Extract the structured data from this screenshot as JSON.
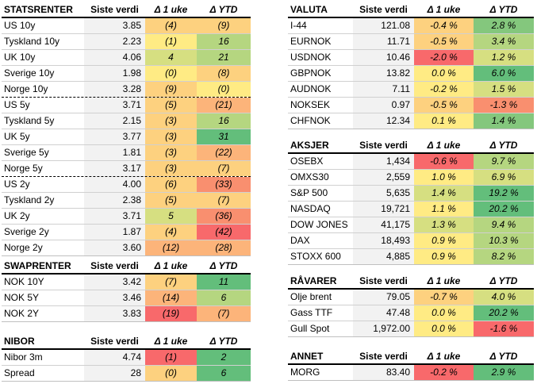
{
  "palette": {
    "deep_green": "#63be7b",
    "green": "#84c77d",
    "light_green": "#b5d680",
    "pale_green": "#d6df81",
    "yellow": "#ffeb84",
    "light_orange": "#fdd17f",
    "orange": "#fcb47a",
    "red_orange": "#f98f6f",
    "red": "#f8696b",
    "gray_bg": "#f2f2f2"
  },
  "tables": [
    {
      "id": "statsrenter",
      "title": "STATSRENTER",
      "col_value": "Siste verdi",
      "col_week": "Δ 1 uke",
      "col_ytd": "Δ YTD",
      "rows": [
        {
          "name": "US 10y",
          "value": "3.85",
          "week": "(4)",
          "week_color": "light_orange",
          "ytd": "(9)",
          "ytd_color": "light_orange"
        },
        {
          "name": "Tyskland 10y",
          "value": "2.23",
          "week": "(1)",
          "week_color": "yellow",
          "ytd": "16",
          "ytd_color": "light_green"
        },
        {
          "name": "UK 10y",
          "value": "4.06",
          "week": "4",
          "week_color": "pale_green",
          "ytd": "21",
          "ytd_color": "light_green"
        },
        {
          "name": "Sverige 10y",
          "value": "1.98",
          "week": "(0)",
          "week_color": "yellow",
          "ytd": "(8)",
          "ytd_color": "light_orange"
        },
        {
          "name": "Norge 10y",
          "value": "3.28",
          "week": "(9)",
          "week_color": "light_orange",
          "ytd": "(0)",
          "ytd_color": "yellow"
        },
        {
          "name": "US 5y",
          "value": "3.71",
          "week": "(5)",
          "week_color": "light_orange",
          "ytd": "(21)",
          "ytd_color": "orange",
          "dashed": true
        },
        {
          "name": "Tyskland 5y",
          "value": "2.15",
          "week": "(3)",
          "week_color": "light_orange",
          "ytd": "16",
          "ytd_color": "light_green"
        },
        {
          "name": "UK 5y",
          "value": "3.77",
          "week": "(3)",
          "week_color": "light_orange",
          "ytd": "31",
          "ytd_color": "deep_green"
        },
        {
          "name": "Sverige 5y",
          "value": "1.81",
          "week": "(3)",
          "week_color": "light_orange",
          "ytd": "(22)",
          "ytd_color": "orange"
        },
        {
          "name": "Norge 5y",
          "value": "3.17",
          "week": "(3)",
          "week_color": "light_orange",
          "ytd": "(7)",
          "ytd_color": "light_orange"
        },
        {
          "name": "US 2y",
          "value": "4.00",
          "week": "(6)",
          "week_color": "light_orange",
          "ytd": "(33)",
          "ytd_color": "red_orange",
          "dashed": true
        },
        {
          "name": "Tyskland 2y",
          "value": "2.38",
          "week": "(5)",
          "week_color": "light_orange",
          "ytd": "(7)",
          "ytd_color": "light_orange"
        },
        {
          "name": "UK 2y",
          "value": "3.71",
          "week": "5",
          "week_color": "pale_green",
          "ytd": "(36)",
          "ytd_color": "red_orange"
        },
        {
          "name": "Sverige 2y",
          "value": "1.87",
          "week": "(4)",
          "week_color": "light_orange",
          "ytd": "(42)",
          "ytd_color": "red"
        },
        {
          "name": "Norge 2y",
          "value": "3.60",
          "week": "(12)",
          "week_color": "orange",
          "ytd": "(28)",
          "ytd_color": "orange"
        }
      ]
    },
    {
      "id": "swaprenter",
      "title": "SWAPRENTER",
      "col_value": "Siste verdi",
      "col_week": "Δ 1 uke",
      "col_ytd": "Δ YTD",
      "rows": [
        {
          "name": "NOK 10Y",
          "value": "3.42",
          "week": "(7)",
          "week_color": "light_orange",
          "ytd": "11",
          "ytd_color": "deep_green"
        },
        {
          "name": "NOK 5Y",
          "value": "3.46",
          "week": "(14)",
          "week_color": "orange",
          "ytd": "6",
          "ytd_color": "light_green"
        },
        {
          "name": "NOK 2Y",
          "value": "3.83",
          "week": "(19)",
          "week_color": "red",
          "ytd": "(7)",
          "ytd_color": "orange"
        }
      ]
    },
    {
      "id": "nibor",
      "title": "NIBOR",
      "col_value": "Siste verdi",
      "col_week": "Δ 1 uke",
      "col_ytd": "Δ YTD",
      "rows": [
        {
          "name": "Nibor 3m",
          "value": "4.74",
          "week": "(1)",
          "week_color": "red",
          "ytd": "2",
          "ytd_color": "deep_green"
        },
        {
          "name": "Spread",
          "value": "28",
          "week": "(0)",
          "week_color": "light_orange",
          "ytd": "6",
          "ytd_color": "deep_green"
        }
      ]
    },
    {
      "id": "valuta",
      "title": "VALUTA",
      "col_value": "Siste verdi",
      "col_week": "Δ 1 uke",
      "col_ytd": "Δ YTD",
      "rows": [
        {
          "name": "I-44",
          "value": "121.08",
          "week": "-0.4 %",
          "week_color": "light_orange",
          "ytd": "2.8 %",
          "ytd_color": "green"
        },
        {
          "name": "EURNOK",
          "value": "11.71",
          "week": "-0.5 %",
          "week_color": "light_orange",
          "ytd": "3.4 %",
          "ytd_color": "light_green"
        },
        {
          "name": "USDNOK",
          "value": "10.46",
          "week": "-2.0 %",
          "week_color": "red",
          "ytd": "1.2 %",
          "ytd_color": "pale_green"
        },
        {
          "name": "GBPNOK",
          "value": "13.82",
          "week": "0.0 %",
          "week_color": "yellow",
          "ytd": "6.0 %",
          "ytd_color": "deep_green"
        },
        {
          "name": "AUDNOK",
          "value": "7.11",
          "week": "-0.2 %",
          "week_color": "yellow",
          "ytd": "1.5 %",
          "ytd_color": "pale_green"
        },
        {
          "name": "NOKSEK",
          "value": "0.97",
          "week": "-0.5 %",
          "week_color": "light_orange",
          "ytd": "-1.3 %",
          "ytd_color": "red_orange"
        },
        {
          "name": "CHFNOK",
          "value": "12.34",
          "week": "0.1 %",
          "week_color": "yellow",
          "ytd": "1.4 %",
          "ytd_color": "green"
        }
      ]
    },
    {
      "id": "aksjer",
      "title": "AKSJER",
      "col_value": "Siste verdi",
      "col_week": "Δ 1 uke",
      "col_ytd": "Δ YTD",
      "rows": [
        {
          "name": "OSEBX",
          "value": "1,434",
          "week": "-0.6 %",
          "week_color": "red",
          "ytd": "9.7 %",
          "ytd_color": "light_green"
        },
        {
          "name": "OMXS30",
          "value": "2,559",
          "week": "1.0 %",
          "week_color": "yellow",
          "ytd": "6.9 %",
          "ytd_color": "pale_green"
        },
        {
          "name": "S&P 500",
          "value": "5,635",
          "week": "1.4 %",
          "week_color": "pale_green",
          "ytd": "19.2 %",
          "ytd_color": "deep_green"
        },
        {
          "name": "NASDAQ",
          "value": "19,721",
          "week": "1.1 %",
          "week_color": "yellow",
          "ytd": "20.2 %",
          "ytd_color": "deep_green"
        },
        {
          "name": "DOW JONES",
          "value": "41,175",
          "week": "1.3 %",
          "week_color": "pale_green",
          "ytd": "9.4 %",
          "ytd_color": "light_green"
        },
        {
          "name": "DAX",
          "value": "18,493",
          "week": "0.9 %",
          "week_color": "yellow",
          "ytd": "10.3 %",
          "ytd_color": "light_green"
        },
        {
          "name": "STOXX 600",
          "value": "4,885",
          "week": "0.9 %",
          "week_color": "yellow",
          "ytd": "8.2 %",
          "ytd_color": "light_green"
        }
      ]
    },
    {
      "id": "ravarer",
      "title": "RÅVARER",
      "col_value": "Siste verdi",
      "col_week": "Δ 1 uke",
      "col_ytd": "Δ YTD",
      "rows": [
        {
          "name": "Olje brent",
          "value": "79.05",
          "week": "-0.7 %",
          "week_color": "light_orange",
          "ytd": "4.0 %",
          "ytd_color": "pale_green"
        },
        {
          "name": "Gass TTF",
          "value": "47.48",
          "week": "0.0 %",
          "week_color": "yellow",
          "ytd": "20.2 %",
          "ytd_color": "deep_green"
        },
        {
          "name": "Gull Spot",
          "value": "1,972.00",
          "week": "0.0 %",
          "week_color": "yellow",
          "ytd": "-1.6 %",
          "ytd_color": "red"
        }
      ]
    },
    {
      "id": "annet",
      "title": "ANNET",
      "col_value": "Siste verdi",
      "col_week": "Δ 1 uke",
      "col_ytd": "Δ YTD",
      "rows": [
        {
          "name": "MORG",
          "value": "83.40",
          "week": "-0.2 %",
          "week_color": "red",
          "ytd": "2.9 %",
          "ytd_color": "deep_green"
        }
      ]
    }
  ]
}
